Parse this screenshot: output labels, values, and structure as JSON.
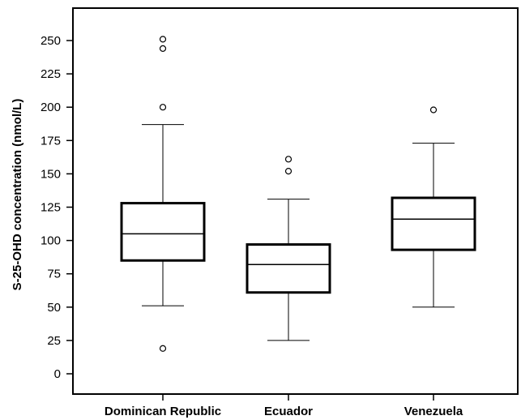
{
  "chart_data": {
    "type": "box",
    "title": "",
    "xlabel": "",
    "ylabel": "S-25-OHD concentration (nmol/L)",
    "ylim": [
      -15,
      275
    ],
    "yticks": [
      0,
      25,
      50,
      75,
      100,
      125,
      150,
      175,
      200,
      225,
      250
    ],
    "ytick_labels": [
      "0",
      "25",
      "50",
      "75",
      "100",
      "125",
      "150",
      "175",
      "200",
      "225",
      "250"
    ],
    "grid": false,
    "legend": "none",
    "categories": [
      "Dominican Republic",
      "Ecuador",
      "Venezuela"
    ],
    "boxes": [
      {
        "category": "Dominican Republic",
        "whisker_low": 51,
        "q1": 85,
        "median": 105,
        "q3": 128,
        "whisker_high": 187,
        "outliers": [
          19,
          200,
          244,
          251
        ]
      },
      {
        "category": "Ecuador",
        "whisker_low": 25,
        "q1": 61,
        "median": 82,
        "q3": 97,
        "whisker_high": 131,
        "outliers": [
          152,
          161
        ]
      },
      {
        "category": "Venezuela",
        "whisker_low": 50,
        "q1": 93,
        "median": 116,
        "q3": 132,
        "whisker_high": 173,
        "outliers": [
          198
        ]
      }
    ]
  }
}
